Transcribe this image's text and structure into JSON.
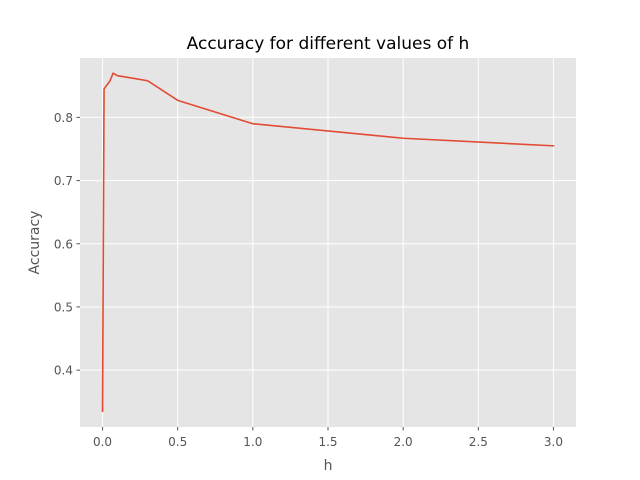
{
  "chart_data": {
    "type": "line",
    "title": "Accuracy for different values of h",
    "xlabel": "h",
    "ylabel": "Accuracy",
    "xlim": [
      -0.15,
      3.15
    ],
    "ylim": [
      0.31,
      0.894
    ],
    "x_ticks": [
      0.0,
      0.5,
      1.0,
      1.5,
      2.0,
      2.5,
      3.0
    ],
    "x_tick_labels": [
      "0.0",
      "0.5",
      "1.0",
      "1.5",
      "2.0",
      "2.5",
      "3.0"
    ],
    "y_ticks": [
      0.4,
      0.5,
      0.6,
      0.7,
      0.8
    ],
    "y_tick_labels": [
      "0.4",
      "0.5",
      "0.6",
      "0.7",
      "0.8"
    ],
    "grid": true,
    "style": {
      "background": "#e5e5e5",
      "grid_color": "#ffffff",
      "line_color": "#e24a33",
      "text_color": "#555555"
    },
    "series": [
      {
        "x": [
          0.0,
          0.01,
          0.05,
          0.07,
          0.1,
          0.2,
          0.3,
          0.5,
          1.0,
          2.0,
          3.0
        ],
        "y": [
          0.335,
          0.845,
          0.858,
          0.87,
          0.866,
          0.862,
          0.858,
          0.827,
          0.79,
          0.767,
          0.755
        ]
      }
    ]
  }
}
